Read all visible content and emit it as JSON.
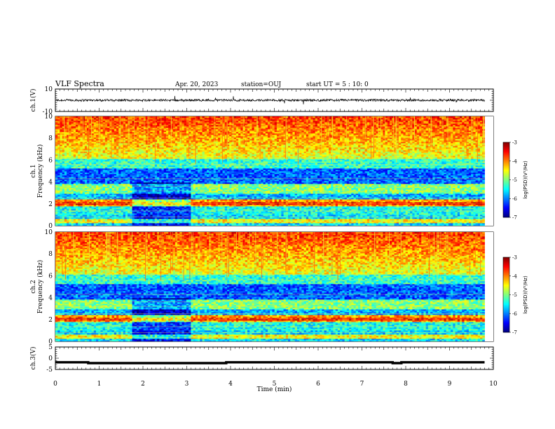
{
  "header": {
    "title": "VLF Spectra",
    "date": "Apr. 20, 2023",
    "station": "station=OUJ",
    "start": "start  UT =  5 : 10: 0"
  },
  "chart_data": [
    {
      "type": "line",
      "name": "ch1-waveform",
      "ylabel": "ch.1(V)",
      "ylim": [
        -10,
        10
      ],
      "yticks": [
        "10",
        "-10"
      ],
      "baseline": 0,
      "amplitude": 1.0
    },
    {
      "type": "heatmap",
      "name": "ch1-spectrogram",
      "ylabel_channel": "ch.1",
      "ylabel": "Frequency (kHz)",
      "ylim": [
        0,
        10
      ],
      "yticks": [
        "0",
        "2",
        "4",
        "6",
        "8",
        "10"
      ],
      "colorbar_label": "log(PSD)(V²/Hz)",
      "colorbar_ticks": [
        "-3",
        "-4",
        "-5",
        "-6",
        "-7"
      ],
      "colorbar_range": [
        -7,
        -3
      ]
    },
    {
      "type": "heatmap",
      "name": "ch2-spectrogram",
      "ylabel_channel": "ch.2",
      "ylabel": "Frequency (kHz)",
      "ylim": [
        0,
        10
      ],
      "yticks": [
        "0",
        "2",
        "4",
        "6",
        "8",
        "10"
      ],
      "colorbar_label": "log(PSD)(V²/Hz)",
      "colorbar_ticks": [
        "-3",
        "-4",
        "-5",
        "-6",
        "-7"
      ],
      "colorbar_range": [
        -7,
        -3
      ]
    },
    {
      "type": "line",
      "name": "ch3-waveform",
      "ylabel": "ch.3(V)",
      "ylim": [
        -5,
        5
      ],
      "yticks": [
        "5",
        "0",
        "-5"
      ],
      "x": [
        0,
        0.75,
        0.75,
        3.9,
        3.9,
        7.7,
        7.7,
        7.9,
        7.9,
        9.8
      ],
      "y": [
        -1.8,
        -1.8,
        -2.2,
        -2.2,
        -1.8,
        -1.8,
        -2.2,
        -2.2,
        -1.8,
        -1.8
      ]
    }
  ],
  "xaxis": {
    "label": "Time  (min)",
    "xlim": [
      0,
      10
    ],
    "ticks": [
      "0",
      "1",
      "2",
      "3",
      "4",
      "5",
      "6",
      "7",
      "8",
      "9",
      "10"
    ]
  }
}
